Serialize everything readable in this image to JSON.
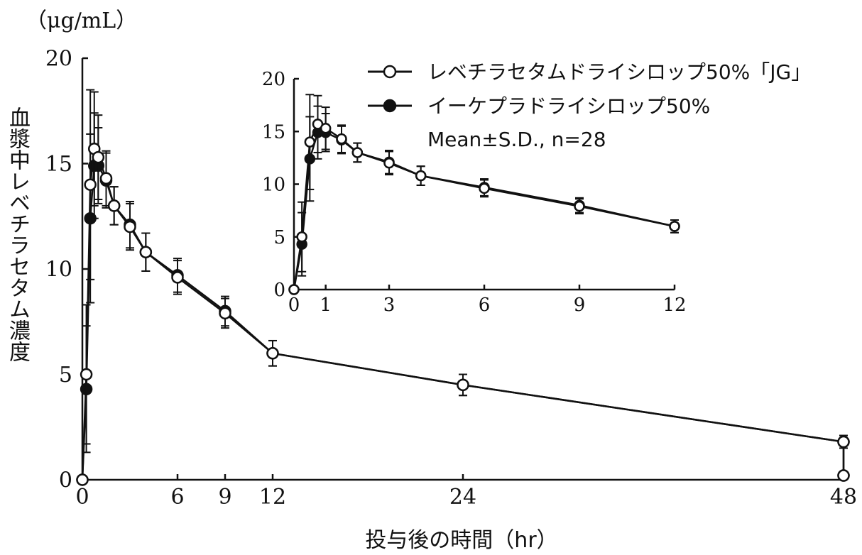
{
  "chart_data": [
    {
      "type": "line",
      "ylabel": "血漿中レベチラセタム濃度",
      "yunit": "（μg/mL）",
      "xlabel": "投与後の時間（hr）",
      "xlim": [
        0,
        48
      ],
      "ylim": [
        0,
        20
      ],
      "xticks": [
        0,
        6,
        9,
        12,
        24,
        48
      ],
      "yticks": [
        0,
        5,
        10,
        15,
        20
      ],
      "legend_position": "inside inset area, top",
      "series": [
        {
          "name": "レベチラセタムドライシロップ50%「JG」",
          "marker": "open-circle",
          "x": [
            0,
            0.25,
            0.5,
            0.75,
            1,
            1.5,
            2,
            3,
            4,
            6,
            9,
            12,
            24,
            48
          ],
          "y": [
            0,
            5.0,
            14.0,
            15.7,
            15.3,
            14.3,
            13.0,
            12.0,
            10.8,
            9.6,
            7.9,
            6.0,
            4.5,
            1.8
          ],
          "sd": [
            0,
            3.3,
            4.5,
            2.7,
            2.0,
            1.3,
            0.9,
            1.1,
            0.9,
            0.8,
            0.7,
            0.6,
            0.5,
            0.3
          ]
        },
        {
          "name": "イーケプラドライシロップ50%",
          "marker": "filled-circle",
          "x": [
            0,
            0.25,
            0.5,
            0.75,
            1,
            1.5,
            2,
            3,
            4,
            6,
            9,
            12,
            24,
            48
          ],
          "y": [
            0,
            4.3,
            12.4,
            14.9,
            14.9,
            14.2,
            13.0,
            12.1,
            10.8,
            9.7,
            8.0,
            6.0,
            4.5,
            1.8
          ],
          "sd": [
            0,
            3.0,
            4.0,
            2.5,
            1.8,
            1.3,
            0.9,
            1.1,
            0.9,
            0.8,
            0.7,
            0.6,
            0.5,
            0.3
          ]
        }
      ],
      "endpoint": {
        "x": 48,
        "y": 0.2
      }
    },
    {
      "type": "line",
      "role": "inset",
      "xlim": [
        0,
        12
      ],
      "ylim": [
        0,
        20
      ],
      "xticks": [
        0,
        1,
        3,
        6,
        9,
        12
      ],
      "yticks": [
        0,
        5,
        10,
        15,
        20
      ],
      "annotation": "Mean±S.D., n=28"
    }
  ]
}
